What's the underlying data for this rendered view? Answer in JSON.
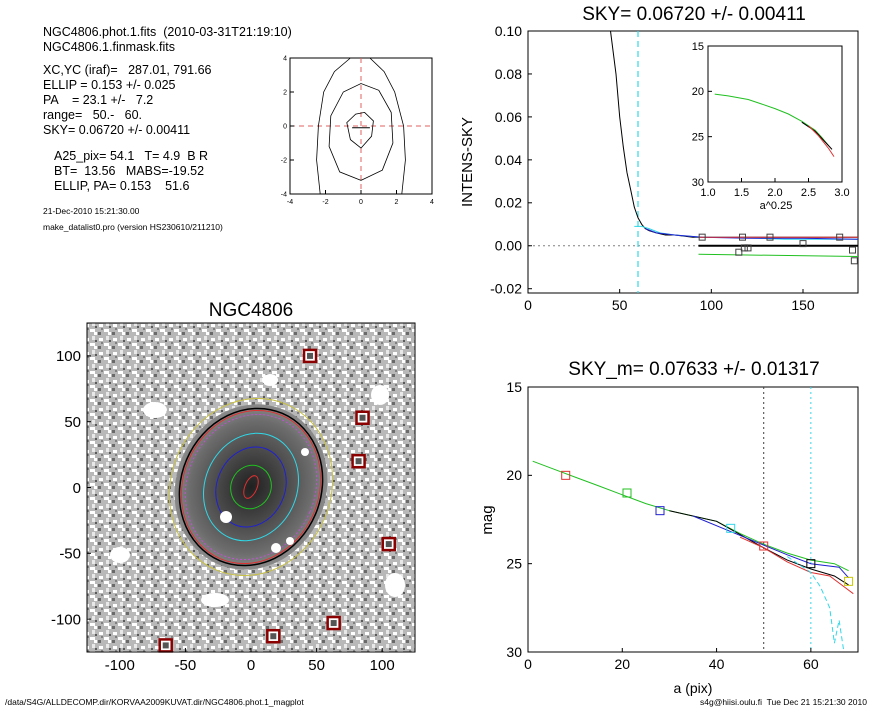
{
  "info": {
    "line1": "NGC4806.phot.1.fits  (2010-03-31T21:19:10)",
    "line2": "NGC4806.1.finmask.fits",
    "xcyc": "XC,YC (iraf)=   287.01, 791.66",
    "ellip": "ELLIP = 0.153 +/- 0.025",
    "pa": "PA    = 23.1 +/-   7.2",
    "range": "range=   50.-   60.",
    "sky": "SKY= 0.06720 +/- 0.00411",
    "a25": "A25_pix= 54.1   T= 4.9  B R",
    "bt": "BT=  13.56   MABS=-19.52",
    "ellippa": "ELLIP, PA= 0.153    51.6",
    "date": "21-Dec-2010 15:21:30.00",
    "prog": "make_datalist0.pro (version HS230610/211210)"
  },
  "footer": {
    "left": "/data/S4G/ALLDECOMP.dir/KORVAA2009KUVAT.dir/NGC4806.phot.1_magplot",
    "right": "s4g@hiisi.oulu.fi  Tue Dec 21 15:21:30 2010"
  },
  "colors": {
    "red": "#e03030",
    "green": "#20c020",
    "blue": "#2020d0",
    "cyan": "#30d8e8",
    "black": "#000000",
    "gray": "#808080"
  },
  "chart_data": [
    {
      "id": "contour",
      "type": "line",
      "x_ticks": [
        "-4",
        "-2",
        "0",
        "2",
        "4"
      ],
      "y_ticks": [
        "-4",
        "-2",
        "0",
        "2",
        "4"
      ],
      "xlim": [
        -4,
        4
      ],
      "ylim": [
        -4,
        4
      ],
      "contours": [
        [
          [
            -2.3,
            -4
          ],
          [
            -2.5,
            -2
          ],
          [
            -2.4,
            0
          ],
          [
            -2.1,
            2
          ],
          [
            -1.5,
            3.2
          ],
          [
            -0.6,
            4
          ]
        ],
        [
          [
            2.3,
            -4
          ],
          [
            2.5,
            -2
          ],
          [
            2.4,
            0
          ],
          [
            1.9,
            2
          ],
          [
            1.3,
            3.2
          ],
          [
            0.5,
            4
          ]
        ],
        [
          [
            0,
            -3.2
          ],
          [
            -1.2,
            -2.7
          ],
          [
            -1.8,
            -1.2
          ],
          [
            -1.7,
            0.6
          ],
          [
            -1.0,
            2.0
          ],
          [
            0,
            2.5
          ],
          [
            1.0,
            2.1
          ],
          [
            1.7,
            0.8
          ],
          [
            1.8,
            -1.0
          ],
          [
            1.2,
            -2.6
          ],
          [
            0,
            -3.2
          ]
        ],
        [
          [
            0,
            -1.3
          ],
          [
            -0.6,
            -0.8
          ],
          [
            -0.8,
            0.2
          ],
          [
            -0.3,
            0.7
          ],
          [
            0.2,
            0.8
          ],
          [
            0.7,
            0.3
          ],
          [
            0.6,
            -0.6
          ],
          [
            0,
            -1.3
          ]
        ]
      ]
    },
    {
      "id": "sky",
      "type": "line",
      "title": "SKY= 0.06720 +/- 0.00411",
      "ylabel": "INTENS-SKY",
      "xlim": [
        0,
        180
      ],
      "ylim": [
        -0.022,
        0.1
      ],
      "x_ticks": [
        "0",
        "50",
        "100",
        "150"
      ],
      "y_ticks": [
        "-0.02",
        "0.00",
        "0.02",
        "0.04",
        "0.06",
        "0.08",
        "0.10"
      ],
      "vline_x": 60,
      "series": [
        {
          "color": "black",
          "points": [
            [
              45,
              0.1
            ],
            [
              48,
              0.08
            ],
            [
              50,
              0.06
            ],
            [
              52,
              0.046
            ],
            [
              54,
              0.034
            ],
            [
              56,
              0.026
            ],
            [
              58,
              0.018
            ],
            [
              60,
              0.013
            ],
            [
              62,
              0.01
            ],
            [
              64,
              0.008
            ],
            [
              66,
              0.007
            ],
            [
              70,
              0.006
            ],
            [
              75,
              0.005
            ],
            [
              80,
              0.005
            ],
            [
              90,
              0.004
            ],
            [
              100,
              0.004
            ],
            [
              120,
              0.004
            ],
            [
              150,
              0.004
            ],
            [
              180,
              0.004
            ]
          ]
        },
        {
          "color": "cyan",
          "points": [
            [
              58,
              0.009
            ],
            [
              62,
              0.009
            ],
            [
              66,
              0.008
            ],
            [
              72,
              0.006
            ],
            [
              80,
              0.005
            ],
            [
              95,
              0.004
            ],
            [
              110,
              0.004
            ],
            [
              140,
              0.003
            ],
            [
              180,
              0.003
            ]
          ]
        },
        {
          "color": "blue",
          "points": [
            [
              64,
              0.008
            ],
            [
              70,
              0.006
            ],
            [
              80,
              0.005
            ],
            [
              95,
              0.004
            ],
            [
              120,
              0.0035
            ],
            [
              150,
              0.0035
            ],
            [
              180,
              0.003
            ]
          ]
        },
        {
          "color": "red",
          "points": [
            [
              93,
              0.004
            ],
            [
              180,
              0.004
            ]
          ]
        },
        {
          "color": "green",
          "points": [
            [
              93,
              -0.004
            ],
            [
              180,
              -0.005
            ]
          ]
        }
      ],
      "squares": [
        [
          95,
          0.004
        ],
        [
          115,
          -0.003
        ],
        [
          117,
          0.004
        ],
        [
          118,
          -0.001
        ],
        [
          120,
          -0.001
        ],
        [
          132,
          0.004
        ],
        [
          150,
          0.001
        ],
        [
          170,
          0.004
        ],
        [
          177,
          -0.002
        ],
        [
          178,
          -0.007
        ]
      ],
      "inset": {
        "xlabel": "a^0.25",
        "xlim": [
          1.0,
          3.0
        ],
        "ylim": [
          15,
          30
        ],
        "x_ticks": [
          "1.0",
          "1.5",
          "2.0",
          "2.5",
          "3.0"
        ],
        "y_ticks": [
          "15",
          "20",
          "25",
          "30"
        ],
        "series": [
          {
            "color": "green",
            "points": [
              [
                1.1,
                20.3
              ],
              [
                1.3,
                20.5
              ],
              [
                1.6,
                20.9
              ],
              [
                1.8,
                21.4
              ],
              [
                2.0,
                21.9
              ],
              [
                2.2,
                22.5
              ],
              [
                2.4,
                23.3
              ],
              [
                2.6,
                24.3
              ],
              [
                2.7,
                25.1
              ],
              [
                2.8,
                26.0
              ]
            ]
          },
          {
            "color": "black",
            "points": [
              [
                2.4,
                23.4
              ],
              [
                2.6,
                24.4
              ],
              [
                2.7,
                25.2
              ],
              [
                2.85,
                26.4
              ]
            ]
          },
          {
            "color": "red",
            "points": [
              [
                2.5,
                23.8
              ],
              [
                2.65,
                24.9
              ],
              [
                2.8,
                26.3
              ],
              [
                2.88,
                27.2
              ]
            ]
          }
        ]
      }
    },
    {
      "id": "image",
      "type": "scatter",
      "title": "NGC4806",
      "xlim": [
        -125,
        125
      ],
      "ylim": [
        -125,
        125
      ],
      "x_ticks": [
        "-100",
        "-50",
        "0",
        "50",
        "100"
      ],
      "y_ticks": [
        "-100",
        "-50",
        "0",
        "50",
        "100"
      ],
      "masked_points": [
        [
          45,
          100
        ],
        [
          85,
          53
        ],
        [
          82,
          20
        ],
        [
          105,
          -43
        ],
        [
          17,
          -113
        ],
        [
          63,
          -103
        ],
        [
          -65,
          -120
        ]
      ]
    },
    {
      "id": "mag",
      "type": "line",
      "title": "SKY_m=  0.07633 +/- 0.01317",
      "xlabel": "a (pix)",
      "ylabel": "mag",
      "xlim": [
        0,
        70
      ],
      "ylim": [
        30,
        15
      ],
      "x_ticks": [
        "0",
        "20",
        "40",
        "60"
      ],
      "y_ticks": [
        "15",
        "20",
        "25",
        "30"
      ],
      "vlines": [
        50,
        60
      ],
      "series": [
        {
          "color": "green",
          "points": [
            [
              1,
              19.2
            ],
            [
              5,
              19.6
            ],
            [
              10,
              20.1
            ],
            [
              15,
              20.6
            ],
            [
              20,
              21.1
            ],
            [
              25,
              21.6
            ],
            [
              30,
              22.0
            ],
            [
              35,
              22.3
            ],
            [
              40,
              22.6
            ],
            [
              45,
              23.3
            ],
            [
              50,
              23.9
            ],
            [
              55,
              24.4
            ],
            [
              60,
              24.8
            ],
            [
              65,
              25.0
            ],
            [
              68,
              25.4
            ]
          ]
        },
        {
          "color": "black",
          "points": [
            [
              30,
              22.0
            ],
            [
              40,
              22.6
            ],
            [
              50,
              24.1
            ],
            [
              55,
              24.8
            ],
            [
              60,
              25.3
            ],
            [
              65,
              25.7
            ],
            [
              68,
              26.2
            ]
          ]
        },
        {
          "color": "red",
          "points": [
            [
              45,
              23.5
            ],
            [
              50,
              24.1
            ],
            [
              55,
              24.9
            ],
            [
              60,
              25.5
            ],
            [
              64,
              25.7
            ],
            [
              67,
              26.3
            ],
            [
              69,
              26.7
            ]
          ]
        },
        {
          "color": "blue",
          "points": [
            [
              35,
              22.3
            ],
            [
              45,
              23.4
            ],
            [
              55,
              24.5
            ],
            [
              60,
              25.0
            ],
            [
              66,
              25.2
            ],
            [
              68,
              25.8
            ]
          ]
        },
        {
          "color": "cyan",
          "points": [
            [
              55,
              24.6
            ],
            [
              60,
              25.5
            ],
            [
              62,
              26.3
            ],
            [
              64,
              27.5
            ],
            [
              65,
              29.5
            ],
            [
              66,
              28.2
            ],
            [
              67,
              30
            ]
          ]
        }
      ],
      "squares": [
        {
          "x": 8,
          "y": 20.0,
          "color": "red"
        },
        {
          "x": 21,
          "y": 21.0,
          "color": "green"
        },
        {
          "x": 28,
          "y": 22.0,
          "color": "blue"
        },
        {
          "x": 43,
          "y": 23.0,
          "color": "cyan"
        },
        {
          "x": 50,
          "y": 24.0,
          "color": "red"
        },
        {
          "x": 60,
          "y": 25.0,
          "color": "black"
        },
        {
          "x": 68,
          "y": 26.0,
          "color": "#c8c800"
        }
      ]
    }
  ]
}
